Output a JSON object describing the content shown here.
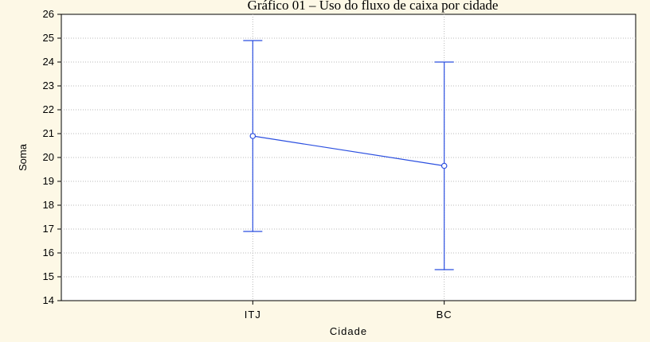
{
  "chart_data": {
    "type": "line",
    "title": "Gráfico 01 – Uso do fluxo de caixa por cidade",
    "xlabel": "Cidade",
    "ylabel": "Soma",
    "categories": [
      "ITJ",
      "BC"
    ],
    "ylim": [
      14,
      26
    ],
    "yticks": [
      14,
      15,
      16,
      17,
      18,
      19,
      20,
      21,
      22,
      23,
      24,
      25,
      26
    ],
    "grid": true,
    "series": [
      {
        "values": [
          20.9,
          19.65
        ],
        "error_low": [
          16.9,
          15.3
        ],
        "error_high": [
          24.9,
          24.0
        ],
        "color": "#2b4fe0"
      }
    ]
  },
  "colors": {
    "page_background": "#fdf8e6",
    "plot_background": "#ffffff",
    "series": "#2b4fe0"
  }
}
